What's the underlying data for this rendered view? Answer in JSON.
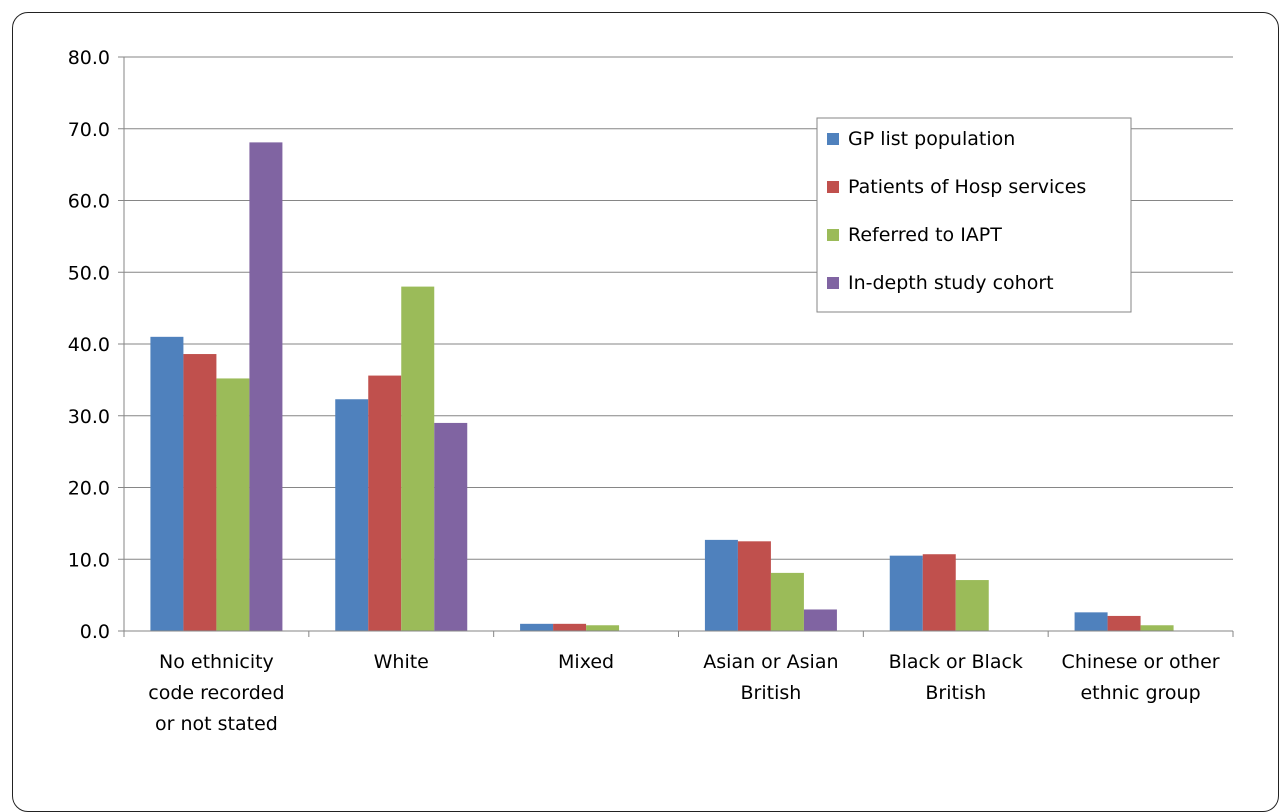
{
  "chart_data": {
    "type": "bar",
    "title": "",
    "xlabel": "",
    "ylabel": "",
    "ylim": [
      0,
      80
    ],
    "yticks": [
      "0.0",
      "10.0",
      "20.0",
      "30.0",
      "40.0",
      "50.0",
      "60.0",
      "70.0",
      "80.0"
    ],
    "grid": true,
    "legend_position": "top-right",
    "categories": [
      [
        "No ethnicity",
        "code recorded",
        "or not stated"
      ],
      [
        "White"
      ],
      [
        "Mixed"
      ],
      [
        "Asian or Asian",
        "British"
      ],
      [
        "Black or Black",
        "British"
      ],
      [
        "Chinese or other",
        "ethnic group"
      ]
    ],
    "series": [
      {
        "name": "GP list population",
        "color": "#4f81bd",
        "values": [
          41.0,
          32.3,
          1.0,
          12.7,
          10.5,
          2.6
        ]
      },
      {
        "name": "Patients of Hosp services",
        "color": "#c0504d",
        "values": [
          38.6,
          35.6,
          1.0,
          12.5,
          10.7,
          2.1
        ]
      },
      {
        "name": "Referred to IAPT",
        "color": "#9bbb59",
        "values": [
          35.2,
          48.0,
          0.8,
          8.1,
          7.1,
          0.8
        ]
      },
      {
        "name": "In-depth study cohort",
        "color": "#8064a2",
        "values": [
          68.1,
          29.0,
          0,
          3.0,
          0,
          0
        ]
      }
    ]
  }
}
